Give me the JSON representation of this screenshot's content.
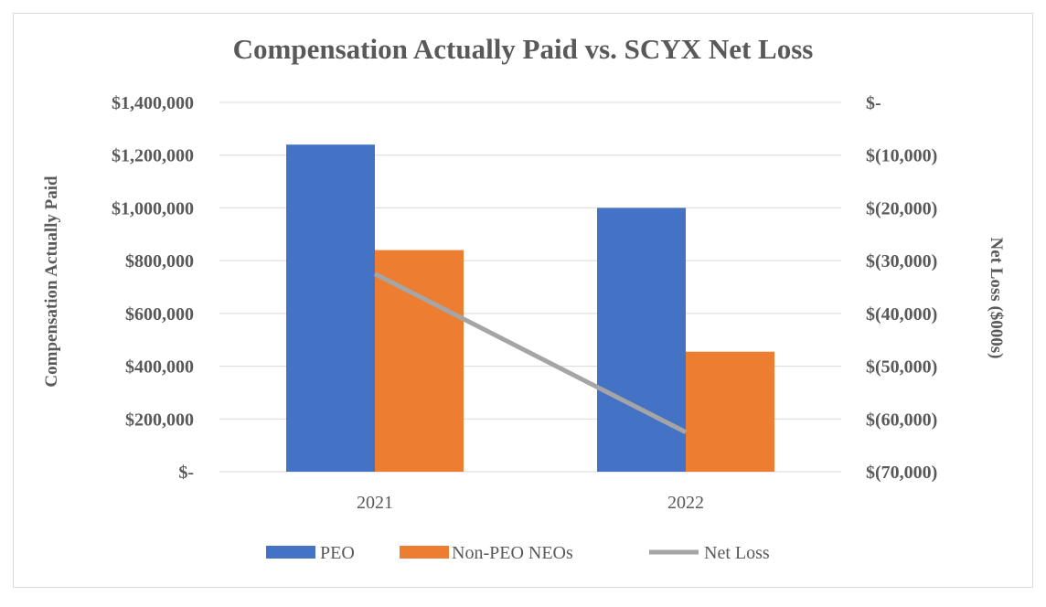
{
  "chart_data": {
    "type": "bar",
    "title": "Compensation Actually Paid vs. SCYX Net Loss",
    "categories": [
      "2021",
      "2022"
    ],
    "series": [
      {
        "name": "PEO",
        "kind": "bar",
        "axis": "left",
        "color": "#4472C4",
        "values": [
          1240000,
          1000000
        ]
      },
      {
        "name": "Non-PEO NEOs",
        "kind": "bar",
        "axis": "left",
        "color": "#ED7D31",
        "values": [
          840000,
          455000
        ]
      },
      {
        "name": "Net Loss",
        "kind": "line",
        "axis": "right",
        "color": "#A5A5A5",
        "values": [
          -32500,
          -62500
        ]
      }
    ],
    "ylabel": "Compensation Actually Paid",
    "ylim": [
      0,
      1400000
    ],
    "yticks": [
      0,
      200000,
      400000,
      600000,
      800000,
      1000000,
      1200000,
      1400000
    ],
    "ytick_labels": [
      "$-",
      "$200,000",
      "$400,000",
      "$600,000",
      "$800,000",
      "$1,000,000",
      "$1,200,000",
      "$1,400,000"
    ],
    "y2label": "Net Loss ($000s)",
    "y2lim": [
      -70000,
      0
    ],
    "y2ticks": [
      -70000,
      -60000,
      -50000,
      -40000,
      -30000,
      -20000,
      -10000,
      0
    ],
    "y2tick_labels": [
      "$(70,000)",
      "$(60,000)",
      "$(50,000)",
      "$(40,000)",
      "$(30,000)",
      "$(20,000)",
      "$(10,000)",
      "$-"
    ],
    "grid": true,
    "legend": "bottom"
  }
}
